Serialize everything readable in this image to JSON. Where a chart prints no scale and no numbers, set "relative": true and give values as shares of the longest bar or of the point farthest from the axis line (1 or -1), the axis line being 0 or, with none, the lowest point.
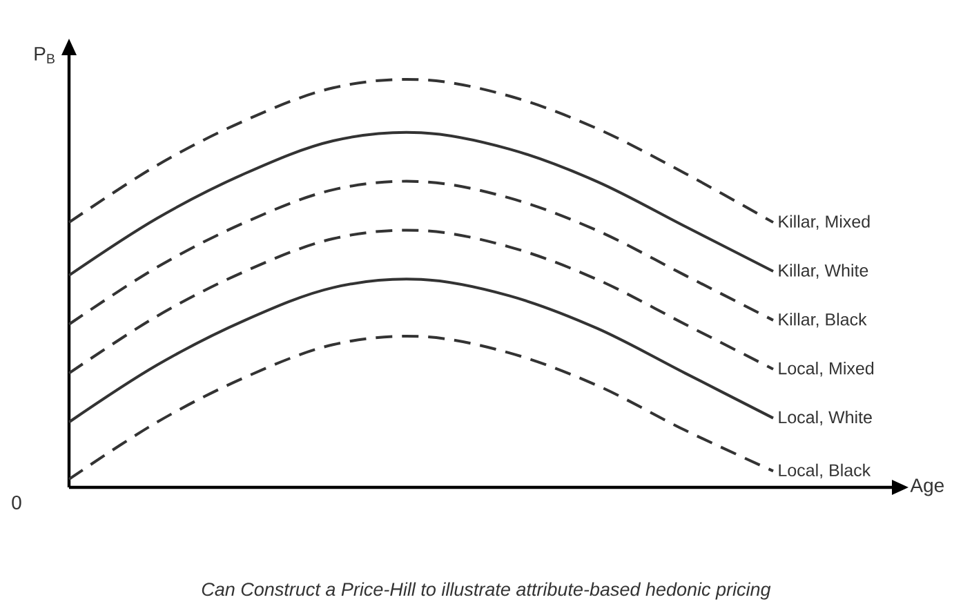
{
  "chart_data": {
    "type": "line",
    "relative": true,
    "xlabel": "Age",
    "ylabel": "P$_{B}$",
    "annotations": [
      "Can Construct a Price-Hill to illustrate attribute-based hedonic pricing",
      "0"
    ],
    "categories": [
      null,
      null,
      null,
      null,
      null,
      null,
      null,
      null,
      null
    ],
    "series": [
      {
        "name": "Killar, Mixed",
        "color": "#333333",
        "line_style": "dashed",
        "values": [
          0.65,
          0.79,
          0.9,
          0.98,
          1.0,
          0.96,
          0.88,
          0.77,
          0.65
        ]
      },
      {
        "name": "Killar, White",
        "color": "#333333",
        "line_style": "solid",
        "values": [
          0.52,
          0.66,
          0.77,
          0.85,
          0.87,
          0.83,
          0.75,
          0.64,
          0.53
        ]
      },
      {
        "name": "Killar, Black",
        "color": "#333333",
        "line_style": "dashed",
        "values": [
          0.4,
          0.54,
          0.65,
          0.73,
          0.75,
          0.71,
          0.63,
          0.52,
          0.41
        ]
      },
      {
        "name": "Local, Mixed",
        "color": "#333333",
        "line_style": "dashed",
        "values": [
          0.28,
          0.42,
          0.53,
          0.61,
          0.63,
          0.59,
          0.51,
          0.4,
          0.29
        ]
      },
      {
        "name": "Local, White",
        "color": "#333333",
        "line_style": "solid",
        "values": [
          0.16,
          0.3,
          0.41,
          0.49,
          0.51,
          0.47,
          0.39,
          0.28,
          0.17
        ]
      },
      {
        "name": "Local, Black",
        "color": "#333333",
        "line_style": "dashed",
        "values": [
          0.02,
          0.16,
          0.27,
          0.35,
          0.37,
          0.33,
          0.25,
          0.14,
          0.04
        ]
      }
    ]
  }
}
